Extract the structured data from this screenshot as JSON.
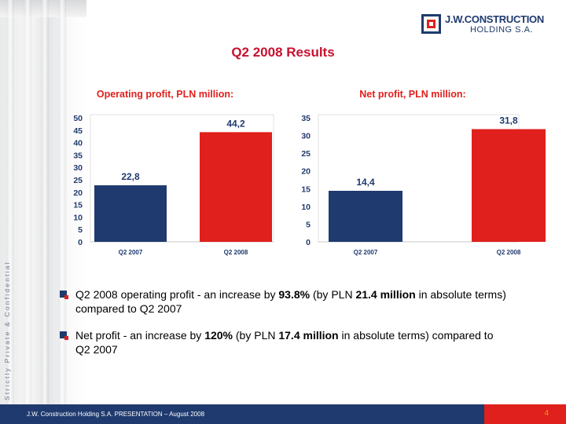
{
  "side_text": "Strictly Private & Confidential",
  "logo": {
    "line1": "J.W.CONSTRUCTION",
    "line2": "HOLDING S.A."
  },
  "title": "Q2 2008 Results",
  "colors": {
    "navy": "#1f3a6e",
    "red": "#e0201c",
    "title_red": "#c8102e",
    "axis_text": "#1f3a6e",
    "label_text": "#1f3a6e",
    "page_number": "#f2a400"
  },
  "chart_data": [
    {
      "type": "bar",
      "title": "Operating profit, PLN million:",
      "categories": [
        "Q2 2007",
        "Q2 2008"
      ],
      "values": [
        22.8,
        44.2
      ],
      "value_labels": [
        "22,8",
        "44,2"
      ],
      "bar_colors": [
        "#1f3a6e",
        "#e0201c"
      ],
      "ylim": [
        0,
        50
      ],
      "yticks": [
        0,
        5,
        10,
        15,
        20,
        25,
        30,
        35,
        40,
        45,
        50
      ],
      "xlabel": "",
      "ylabel": "",
      "grid": false
    },
    {
      "type": "bar",
      "title": "Net profit, PLN million:",
      "categories": [
        "Q2 2007",
        "Q2 2008"
      ],
      "values": [
        14.4,
        31.8
      ],
      "value_labels": [
        "14,4",
        "31,8"
      ],
      "bar_colors": [
        "#1f3a6e",
        "#e0201c"
      ],
      "ylim": [
        0,
        35
      ],
      "yticks": [
        0,
        5,
        10,
        15,
        20,
        25,
        30,
        35
      ],
      "xlabel": "",
      "ylabel": "",
      "grid": false
    }
  ],
  "bullets": [
    {
      "pre": "Q2 2008 operating profit - an increase by ",
      "b1": "93.8%",
      "mid": " (by PLN ",
      "b2": "21.4 million",
      "post": " in absolute terms) compared to Q2 2007"
    },
    {
      "pre": "Net profit - an increase by ",
      "b1": "120%",
      "mid": " (by PLN ",
      "b2": "17.4 million",
      "post": " in absolute terms) compared to Q2 2007"
    }
  ],
  "footer": {
    "text": "J.W. Construction Holding S.A.   PRESENTATION – August 2008",
    "page_number": "4"
  }
}
